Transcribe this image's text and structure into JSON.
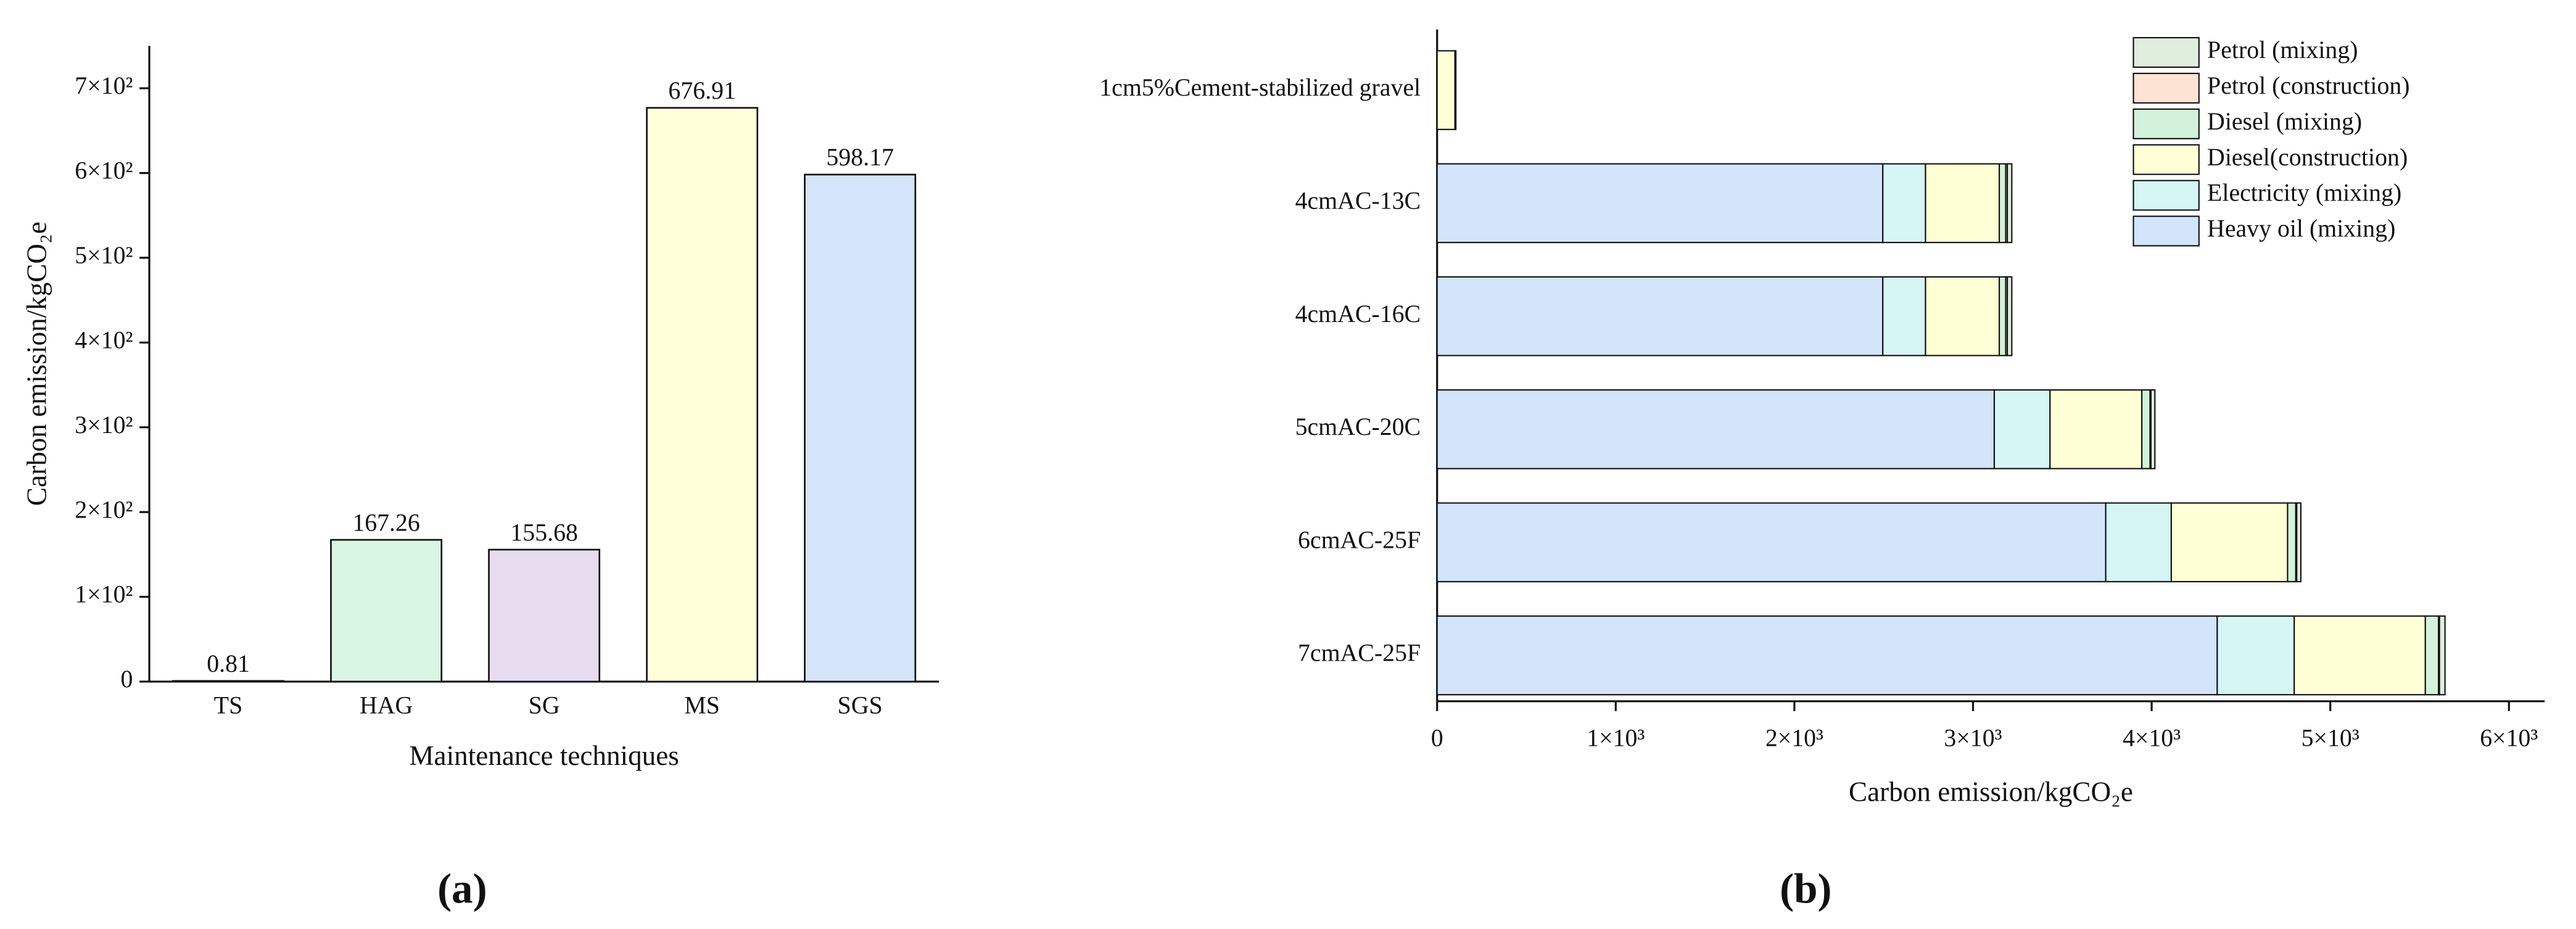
{
  "chart_data": [
    {
      "type": "bar",
      "panel_label": "(a)",
      "x_label": "Maintenance techniques",
      "y_label": "Carbon emission/kgCO₂e",
      "categories": [
        "TS",
        "HAG",
        "SG",
        "MS",
        "SGS"
      ],
      "values": [
        0.81,
        167.26,
        155.68,
        676.91,
        598.17
      ],
      "colors": [
        "#d2e5fb",
        "#d9f5e3",
        "#e8dcf0",
        "#ffffd9",
        "#d5e6fb"
      ],
      "ylim": [
        0,
        750
      ],
      "yticks": [
        0,
        {
          "value": 100,
          "label": "1×10²"
        },
        {
          "value": 200,
          "label": "2×10²"
        },
        {
          "value": 300,
          "label": "3×10²"
        },
        {
          "value": 400,
          "label": "4×10²"
        },
        {
          "value": 500,
          "label": "5×10²"
        },
        {
          "value": 600,
          "label": "6×10²"
        },
        {
          "value": 700,
          "label": "7×10²"
        }
      ],
      "grid": false
    },
    {
      "type": "barh",
      "stacked": true,
      "panel_label": "(b)",
      "x_label": "Carbon emission/kgCO₂e",
      "categories": [
        "1cm5%Cement-stabilized gravel",
        "4cmAC-13C",
        "4cmAC-16C",
        "5cmAC-20C",
        "6cmAC-25F",
        "7cmAC-25F"
      ],
      "series": [
        {
          "name": "Heavy oil (mixing)",
          "color": "#d2e5fb",
          "values": [
            0,
            2495,
            2495,
            3119,
            3743,
            4367
          ]
        },
        {
          "name": "Electricity (mixing)",
          "color": "#d6f5f5",
          "values": [
            0,
            239,
            239,
            312,
            367,
            431
          ]
        },
        {
          "name": "Diesel(construction)",
          "color": "#ffffd6",
          "values": [
            100,
            413,
            413,
            514,
            651,
            734
          ]
        },
        {
          "name": "Diesel (mixing)",
          "color": "#d3f2db",
          "values": [
            0,
            36,
            36,
            46,
            46,
            74
          ]
        },
        {
          "name": "Petrol (construction)",
          "color": "#fde3d3",
          "values": [
            0,
            9,
            9,
            5,
            5,
            5
          ]
        },
        {
          "name": "Petrol (mixing)",
          "color": "#dfeedd",
          "values": [
            5,
            25,
            25,
            22,
            23,
            31
          ]
        }
      ],
      "xlim": [
        0,
        6200
      ],
      "xticks": [
        0,
        {
          "value": 1000,
          "label": "1×10³"
        },
        {
          "value": 2000,
          "label": "2×10³"
        },
        {
          "value": 3000,
          "label": "3×10³"
        },
        {
          "value": 4000,
          "label": "4×10³"
        },
        {
          "value": 5000,
          "label": "5×10³"
        },
        {
          "value": 6000,
          "label": "6×10³"
        }
      ],
      "legend": "upper right",
      "grid": false
    }
  ]
}
